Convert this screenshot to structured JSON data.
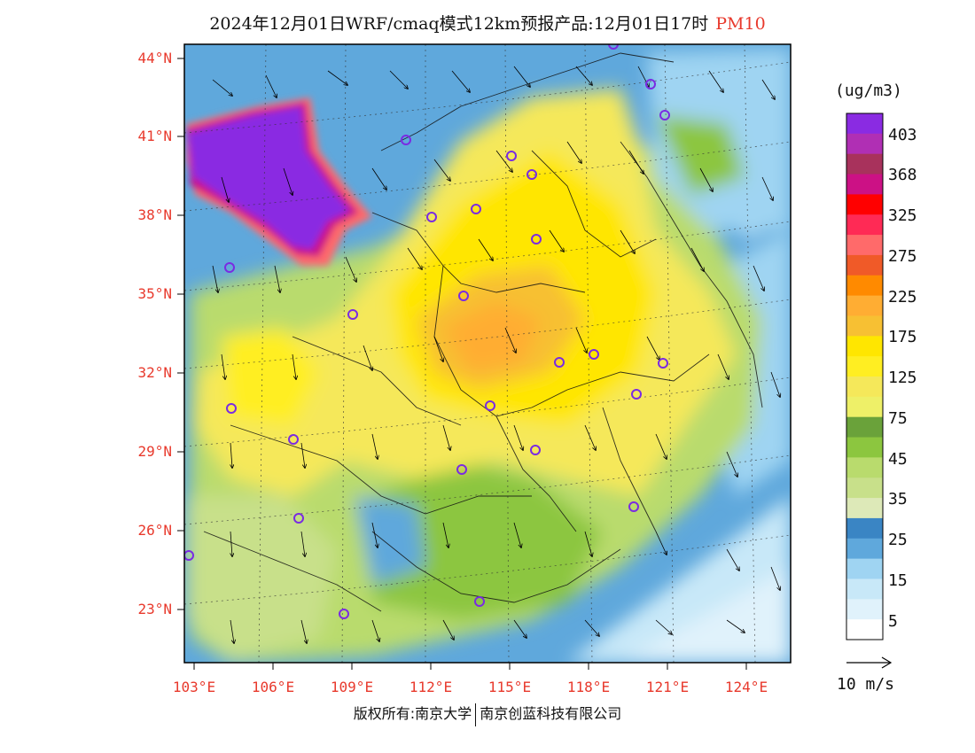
{
  "title": {
    "main": "2024年12月01日WRF/cmaq模式12km预报产品:12月01日17时",
    "pollutant": "PM10"
  },
  "axes": {
    "lat_labels": [
      "44°N",
      "41°N",
      "38°N",
      "35°N",
      "32°N",
      "29°N",
      "26°N",
      "23°N"
    ],
    "lon_labels": [
      "103°E",
      "106°E",
      "109°E",
      "112°E",
      "115°E",
      "118°E",
      "121°E",
      "124°E"
    ]
  },
  "legend": {
    "unit": "(ug/m3)",
    "labels": [
      "403",
      "368",
      "325",
      "275",
      "225",
      "175",
      "125",
      "75",
      "45",
      "35",
      "25",
      "15",
      "5"
    ],
    "colors": [
      "#8a2be2",
      "#b02fb4",
      "#a8325c",
      "#cc1185",
      "#ff0000",
      "#ff2a55",
      "#ff6a6a",
      "#f05a28",
      "#ff8a00",
      "#ffad33",
      "#f7c033",
      "#ffe600",
      "#ffee22",
      "#f5e85a",
      "#eef068",
      "#6aa23a",
      "#8cc63f",
      "#b9db6d",
      "#c8e08a",
      "#dde9b8",
      "#3a85c4",
      "#5fa8dc",
      "#9fd4f2",
      "#c8e8f8",
      "#e0f2fb",
      "#ffffff"
    ]
  },
  "wind_scale": {
    "label": "10 m/s"
  },
  "footer": {
    "copyright_left": "版权所有:南京大学",
    "copyright_right": "南京创蓝科技有限公司"
  }
}
